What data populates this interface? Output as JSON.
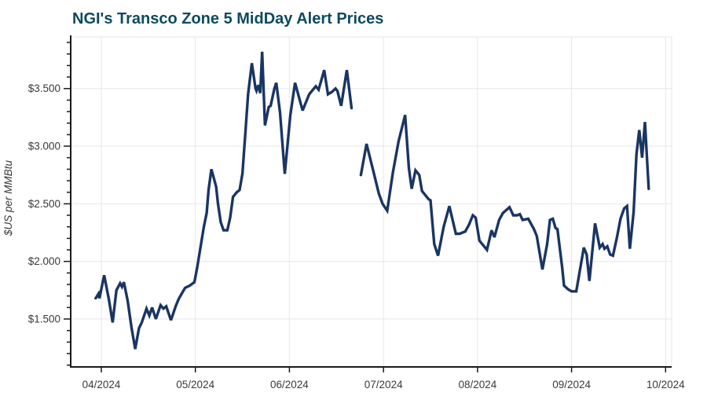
{
  "colors": {
    "title": "#0d4a5f",
    "line": "#1a3563",
    "axis": "#1a1a1a",
    "tick_label": "#3a3a3a",
    "gridline": "#e7e7e7",
    "background": "#ffffff"
  },
  "chart_data": {
    "type": "line",
    "title": "NGI's Transco Zone 5 MidDay Alert Prices",
    "xlabel": "",
    "ylabel": "$US per MMBtu",
    "grid": true,
    "legend": false,
    "line_color": "#1a3563",
    "x_axis": {
      "tick_labels": [
        "04/2024",
        "05/2024",
        "06/2024",
        "07/2024",
        "08/2024",
        "09/2024",
        "10/2024"
      ],
      "tick_positions_months": [
        0,
        1,
        2,
        3,
        4,
        5,
        6
      ],
      "unit": "month/year",
      "range_months": [
        -0.33,
        6.07
      ]
    },
    "y_axis": {
      "tick_labels": [
        "$1.500",
        "$2.000",
        "$2.500",
        "$3.000",
        "$3.500"
      ],
      "tick_values": [
        1.5,
        2.0,
        2.5,
        3.0,
        3.5
      ],
      "minor_tick_step": 0.1,
      "minor_tick_range": [
        1.1,
        3.9
      ],
      "range": [
        1.08,
        3.95
      ],
      "unit": "$US per MMBtu"
    },
    "series": [
      {
        "name": "Transco Zone 5 MidDay Alert Price",
        "note": "x = months after the 04/2024 axis tick; visible gap in the line in late June",
        "segments": [
          [
            [
              -0.06,
              1.68
            ],
            [
              -0.03,
              1.72
            ],
            [
              -0.02,
              1.68
            ],
            [
              0.03,
              1.88
            ],
            [
              0.08,
              1.67
            ],
            [
              0.12,
              1.47
            ],
            [
              0.16,
              1.75
            ],
            [
              0.2,
              1.81
            ],
            [
              0.22,
              1.78
            ],
            [
              0.24,
              1.82
            ],
            [
              0.28,
              1.66
            ],
            [
              0.32,
              1.43
            ],
            [
              0.36,
              1.24
            ],
            [
              0.4,
              1.42
            ],
            [
              0.43,
              1.47
            ],
            [
              0.48,
              1.59
            ],
            [
              0.51,
              1.53
            ],
            [
              0.54,
              1.6
            ],
            [
              0.58,
              1.5
            ],
            [
              0.63,
              1.62
            ],
            [
              0.66,
              1.59
            ],
            [
              0.69,
              1.61
            ],
            [
              0.74,
              1.49
            ],
            [
              0.79,
              1.61
            ],
            [
              0.82,
              1.67
            ],
            [
              0.84,
              1.7
            ],
            [
              0.89,
              1.77
            ],
            [
              0.94,
              1.79
            ],
            [
              0.99,
              1.82
            ],
            [
              1.02,
              1.95
            ],
            [
              1.05,
              2.1
            ],
            [
              1.09,
              2.3
            ],
            [
              1.12,
              2.42
            ],
            [
              1.14,
              2.62
            ],
            [
              1.17,
              2.8
            ],
            [
              1.22,
              2.65
            ],
            [
              1.24,
              2.5
            ],
            [
              1.27,
              2.34
            ],
            [
              1.3,
              2.27
            ],
            [
              1.34,
              2.27
            ],
            [
              1.37,
              2.38
            ],
            [
              1.4,
              2.56
            ],
            [
              1.44,
              2.6
            ],
            [
              1.47,
              2.62
            ],
            [
              1.5,
              2.76
            ],
            [
              1.53,
              3.1
            ],
            [
              1.56,
              3.45
            ],
            [
              1.6,
              3.72
            ],
            [
              1.64,
              3.5
            ],
            [
              1.65,
              3.48
            ],
            [
              1.67,
              3.53
            ],
            [
              1.69,
              3.46
            ],
            [
              1.71,
              3.82
            ],
            [
              1.74,
              3.18
            ],
            [
              1.78,
              3.34
            ],
            [
              1.8,
              3.35
            ],
            [
              1.84,
              3.5
            ],
            [
              1.86,
              3.55
            ],
            [
              1.9,
              3.29
            ],
            [
              1.95,
              2.76
            ],
            [
              2.01,
              3.27
            ],
            [
              2.06,
              3.55
            ],
            [
              2.1,
              3.43
            ],
            [
              2.14,
              3.31
            ],
            [
              2.21,
              3.45
            ],
            [
              2.24,
              3.48
            ],
            [
              2.28,
              3.52
            ],
            [
              2.31,
              3.49
            ],
            [
              2.37,
              3.66
            ],
            [
              2.41,
              3.45
            ],
            [
              2.45,
              3.47
            ],
            [
              2.49,
              3.5
            ],
            [
              2.51,
              3.48
            ],
            [
              2.55,
              3.35
            ],
            [
              2.61,
              3.66
            ],
            [
              2.66,
              3.33
            ]
          ],
          [
            [
              2.76,
              2.75
            ],
            [
              2.82,
              3.02
            ],
            [
              2.89,
              2.79
            ],
            [
              2.95,
              2.59
            ],
            [
              2.99,
              2.5
            ],
            [
              3.04,
              2.44
            ],
            [
              3.1,
              2.77
            ],
            [
              3.16,
              3.04
            ],
            [
              3.23,
              3.27
            ],
            [
              3.27,
              2.81
            ],
            [
              3.3,
              2.63
            ],
            [
              3.34,
              2.79
            ],
            [
              3.38,
              2.75
            ],
            [
              3.41,
              2.61
            ],
            [
              3.48,
              2.54
            ],
            [
              3.5,
              2.53
            ],
            [
              3.54,
              2.15
            ],
            [
              3.58,
              2.05
            ],
            [
              3.64,
              2.3
            ],
            [
              3.7,
              2.48
            ],
            [
              3.77,
              2.24
            ],
            [
              3.81,
              2.24
            ],
            [
              3.87,
              2.26
            ],
            [
              3.91,
              2.32
            ],
            [
              3.95,
              2.4
            ],
            [
              3.98,
              2.38
            ],
            [
              4.02,
              2.18
            ],
            [
              4.04,
              2.16
            ],
            [
              4.1,
              2.1
            ],
            [
              4.15,
              2.27
            ],
            [
              4.18,
              2.21
            ],
            [
              4.23,
              2.36
            ],
            [
              4.27,
              2.42
            ],
            [
              4.34,
              2.47
            ],
            [
              4.38,
              2.4
            ],
            [
              4.42,
              2.4
            ],
            [
              4.45,
              2.41
            ],
            [
              4.48,
              2.36
            ],
            [
              4.54,
              2.37
            ],
            [
              4.6,
              2.28
            ],
            [
              4.63,
              2.22
            ],
            [
              4.69,
              1.93
            ],
            [
              4.74,
              2.15
            ],
            [
              4.77,
              2.36
            ],
            [
              4.8,
              2.37
            ],
            [
              4.83,
              2.29
            ],
            [
              4.85,
              2.28
            ],
            [
              4.9,
              1.95
            ],
            [
              4.92,
              1.79
            ],
            [
              4.96,
              1.76
            ],
            [
              5.0,
              1.74
            ],
            [
              5.05,
              1.74
            ],
            [
              5.13,
              2.12
            ],
            [
              5.16,
              2.06
            ],
            [
              5.19,
              1.83
            ],
            [
              5.25,
              2.33
            ],
            [
              5.3,
              2.12
            ],
            [
              5.33,
              2.15
            ],
            [
              5.35,
              2.11
            ],
            [
              5.38,
              2.13
            ],
            [
              5.41,
              2.06
            ],
            [
              5.44,
              2.05
            ],
            [
              5.48,
              2.2
            ],
            [
              5.52,
              2.37
            ],
            [
              5.56,
              2.46
            ],
            [
              5.59,
              2.48
            ],
            [
              5.62,
              2.11
            ],
            [
              5.66,
              2.43
            ],
            [
              5.69,
              2.93
            ],
            [
              5.72,
              3.14
            ],
            [
              5.75,
              2.9
            ],
            [
              5.78,
              3.21
            ],
            [
              5.82,
              2.63
            ]
          ]
        ]
      }
    ]
  }
}
